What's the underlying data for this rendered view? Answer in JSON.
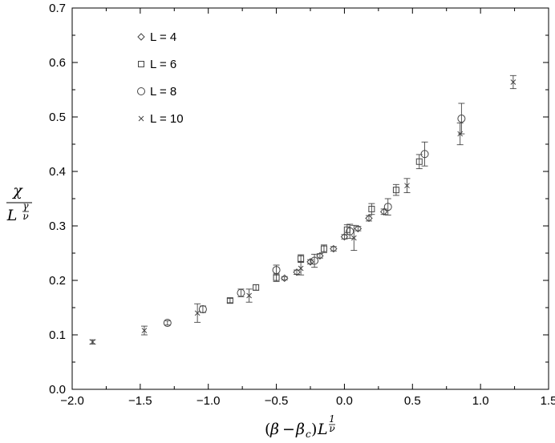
{
  "chart_data": {
    "type": "scatter",
    "xlabel": "(β − βc)L^(1/ν)",
    "ylabel": "χ / L^(γ/ν)",
    "xlim": [
      -2.0,
      1.5
    ],
    "ylim": [
      0.0,
      0.7
    ],
    "xticks": [
      "−2.0",
      "−1.5",
      "−1.0",
      "−0.5",
      "0.0",
      "0.5",
      "1.0",
      "1.5"
    ],
    "yticks": [
      "0.0",
      "0.1",
      "0.2",
      "0.3",
      "0.4",
      "0.5",
      "0.6",
      "0.7"
    ],
    "grid": false,
    "legend_position": "top-left",
    "series": [
      {
        "name": "L = 4",
        "marker": "diamond",
        "points": [
          {
            "x": -0.44,
            "y": 0.204,
            "err": 0.003
          },
          {
            "x": -0.35,
            "y": 0.215,
            "err": 0.004
          },
          {
            "x": -0.25,
            "y": 0.234,
            "err": 0.004
          },
          {
            "x": -0.18,
            "y": 0.245,
            "err": 0.004
          },
          {
            "x": -0.08,
            "y": 0.258,
            "err": 0.004
          },
          {
            "x": 0.0,
            "y": 0.28,
            "err": 0.004
          },
          {
            "x": 0.1,
            "y": 0.295,
            "err": 0.004
          },
          {
            "x": 0.18,
            "y": 0.314,
            "err": 0.005
          },
          {
            "x": 0.29,
            "y": 0.326,
            "err": 0.005
          }
        ]
      },
      {
        "name": "L = 6",
        "marker": "square",
        "points": [
          {
            "x": -0.84,
            "y": 0.163,
            "err": 0.004
          },
          {
            "x": -0.65,
            "y": 0.187,
            "err": 0.005
          },
          {
            "x": -0.5,
            "y": 0.205,
            "err": 0.007
          },
          {
            "x": -0.32,
            "y": 0.24,
            "err": 0.007
          },
          {
            "x": -0.15,
            "y": 0.258,
            "err": 0.007
          },
          {
            "x": 0.02,
            "y": 0.293,
            "err": 0.009
          },
          {
            "x": 0.2,
            "y": 0.331,
            "err": 0.01
          },
          {
            "x": 0.38,
            "y": 0.366,
            "err": 0.01
          },
          {
            "x": 0.55,
            "y": 0.418,
            "err": 0.013
          }
        ]
      },
      {
        "name": "L = 8",
        "marker": "circle",
        "points": [
          {
            "x": -1.3,
            "y": 0.122,
            "err": 0.004
          },
          {
            "x": -1.04,
            "y": 0.147,
            "err": 0.006
          },
          {
            "x": -0.76,
            "y": 0.177,
            "err": 0.007
          },
          {
            "x": -0.5,
            "y": 0.219,
            "err": 0.009
          },
          {
            "x": -0.22,
            "y": 0.236,
            "err": 0.012
          },
          {
            "x": 0.04,
            "y": 0.29,
            "err": 0.013
          },
          {
            "x": 0.32,
            "y": 0.335,
            "err": 0.015
          },
          {
            "x": 0.59,
            "y": 0.432,
            "err": 0.022
          },
          {
            "x": 0.86,
            "y": 0.497,
            "err": 0.028
          }
        ]
      },
      {
        "name": "L = 10",
        "marker": "cross",
        "points": [
          {
            "x": -1.85,
            "y": 0.087,
            "err": 0.004
          },
          {
            "x": -1.47,
            "y": 0.108,
            "err": 0.008
          },
          {
            "x": -1.08,
            "y": 0.14,
            "err": 0.017
          },
          {
            "x": -0.7,
            "y": 0.172,
            "err": 0.012
          },
          {
            "x": -0.32,
            "y": 0.222,
            "err": 0.012
          },
          {
            "x": 0.07,
            "y": 0.278,
            "err": 0.023
          },
          {
            "x": 0.46,
            "y": 0.374,
            "err": 0.013
          },
          {
            "x": 0.85,
            "y": 0.469,
            "err": 0.02
          },
          {
            "x": 1.24,
            "y": 0.564,
            "err": 0.012
          }
        ]
      }
    ]
  }
}
